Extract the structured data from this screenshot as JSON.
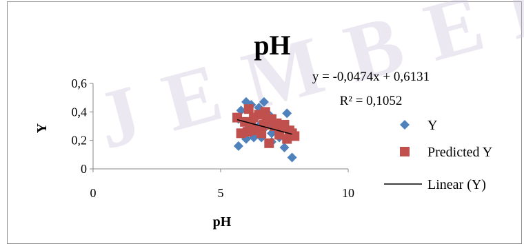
{
  "chart_data": {
    "type": "scatter",
    "title": "pH",
    "xlabel": "pH",
    "ylabel": "Y",
    "xlim": [
      0,
      10
    ],
    "ylim": [
      0,
      0.6
    ],
    "xticks": [
      "0",
      "5",
      "10"
    ],
    "yticks": [
      "0",
      "0,2",
      "0,4",
      "0,6"
    ],
    "grid": false,
    "legend_position": "right",
    "series": [
      {
        "name": "Y",
        "marker": "diamond",
        "color": "#4F81BD",
        "x": [
          5.7,
          5.8,
          5.9,
          6.0,
          6.1,
          6.2,
          6.3,
          6.4,
          6.5,
          6.6,
          6.7,
          6.8,
          6.9,
          7.0,
          7.1,
          7.2,
          7.3,
          7.4,
          7.5,
          7.6,
          7.7,
          7.8,
          6.0,
          6.5,
          7.0,
          5.7
        ],
        "y": [
          0.16,
          0.41,
          0.33,
          0.47,
          0.29,
          0.45,
          0.22,
          0.37,
          0.3,
          0.22,
          0.47,
          0.3,
          0.38,
          0.25,
          0.33,
          0.26,
          0.22,
          0.3,
          0.15,
          0.39,
          0.24,
          0.08,
          0.21,
          0.43,
          0.19,
          0.35
        ]
      },
      {
        "name": "Predicted Y",
        "marker": "square",
        "color": "#C0504D",
        "x": [
          5.65,
          5.8,
          5.95,
          6.05,
          6.1,
          6.2,
          6.3,
          6.4,
          6.5,
          6.6,
          6.7,
          6.75,
          6.8,
          6.9,
          7.0,
          7.1,
          7.2,
          7.3,
          7.4,
          7.5,
          7.6,
          7.7,
          7.8,
          7.9
        ],
        "y": [
          0.36,
          0.25,
          0.33,
          0.26,
          0.42,
          0.3,
          0.36,
          0.27,
          0.38,
          0.25,
          0.31,
          0.4,
          0.34,
          0.18,
          0.35,
          0.3,
          0.32,
          0.24,
          0.29,
          0.31,
          0.21,
          0.27,
          0.25,
          0.23
        ]
      },
      {
        "name": "Linear (Y)",
        "type": "line",
        "color": "#000000",
        "slope": -0.0474,
        "intercept": 0.6131,
        "x_range": [
          5.65,
          7.8
        ]
      }
    ],
    "annotations": {
      "equation": "y = -0,0474x  + 0,6131",
      "r_squared": "R² = 0,1052"
    }
  },
  "watermark": "UNIVERSITAS JEMBER"
}
